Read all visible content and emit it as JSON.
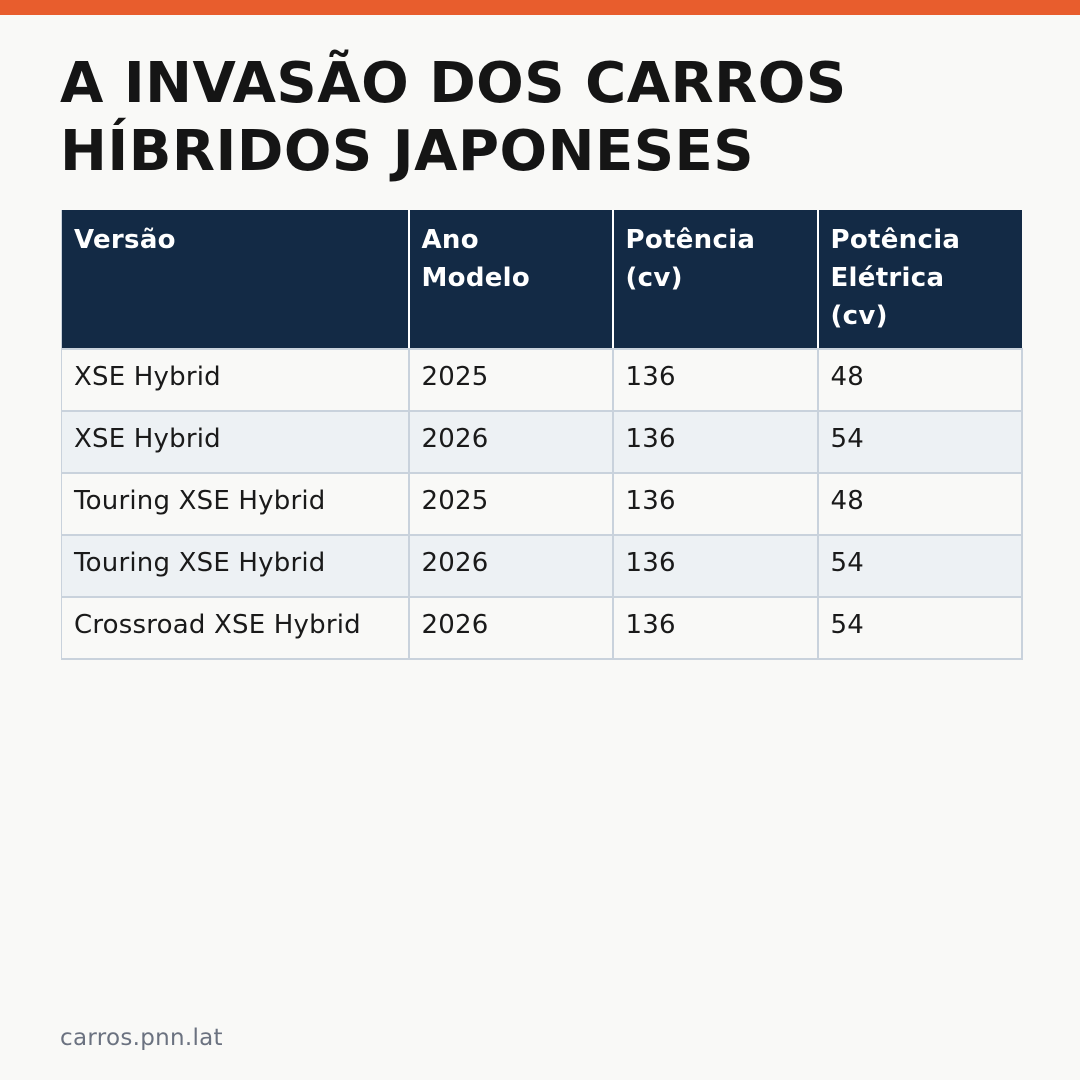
{
  "colors": {
    "accent": "#e85d2d",
    "header_bg": "#132a45",
    "row_alt": "#edf1f4",
    "background": "#f9f9f7"
  },
  "title_lines": [
    "A INVASÃO DOS CARROS",
    "HÍBRIDOS JAPONESES"
  ],
  "table": {
    "headers": [
      [
        "Versão"
      ],
      [
        "Ano",
        "Modelo"
      ],
      [
        "Potência",
        "(cv)"
      ],
      [
        "Potência",
        "Elétrica",
        "(cv)"
      ]
    ],
    "rows": [
      [
        "XSE Hybrid",
        "2025",
        "136",
        "48"
      ],
      [
        "XSE Hybrid",
        "2026",
        "136",
        "54"
      ],
      [
        "Touring XSE Hybrid",
        "2025",
        "136",
        "48"
      ],
      [
        "Touring XSE Hybrid",
        "2026",
        "136",
        "54"
      ],
      [
        "Crossroad XSE Hybrid",
        "2026",
        "136",
        "54"
      ]
    ]
  },
  "footer": "carros.pnn.lat"
}
